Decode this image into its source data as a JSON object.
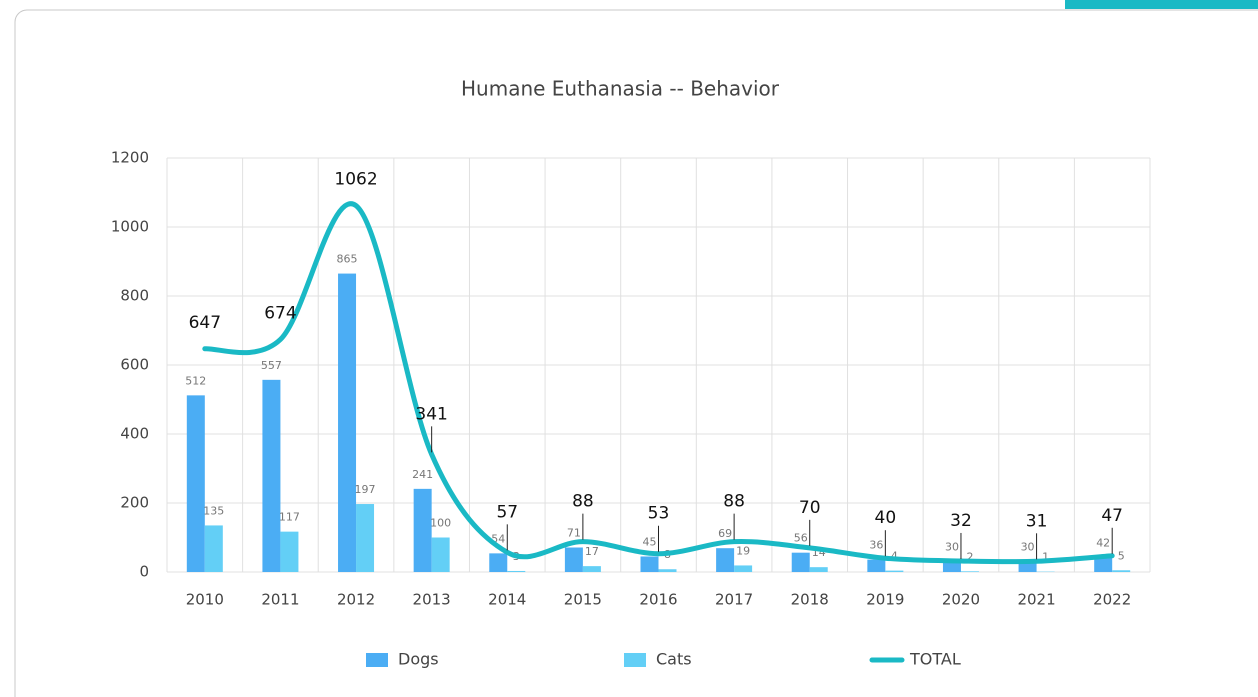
{
  "chart_data": {
    "type": "combo",
    "title": "Humane Euthanasia --  Behavior",
    "categories": [
      "2010",
      "2011",
      "2012",
      "2013",
      "2014",
      "2015",
      "2016",
      "2017",
      "2018",
      "2019",
      "2020",
      "2021",
      "2022"
    ],
    "series": [
      {
        "name": "Dogs",
        "type": "bar",
        "color": "#4badf4",
        "values": [
          512,
          557,
          865,
          241,
          54,
          71,
          45,
          69,
          56,
          36,
          30,
          30,
          42
        ]
      },
      {
        "name": "Cats",
        "type": "bar",
        "color": "#63cff6",
        "values": [
          135,
          117,
          197,
          100,
          3,
          17,
          8,
          19,
          14,
          4,
          2,
          1,
          5
        ]
      },
      {
        "name": "TOTAL",
        "type": "line",
        "smooth": true,
        "color": "#1ab9c5",
        "values": [
          647,
          674,
          1062,
          341,
          57,
          88,
          53,
          88,
          70,
          40,
          32,
          31,
          47
        ]
      }
    ],
    "ylim": [
      0,
      1200
    ],
    "yticks": [
      0,
      200,
      400,
      600,
      800,
      1000,
      1200
    ],
    "grid": true,
    "legend": "bottom"
  }
}
